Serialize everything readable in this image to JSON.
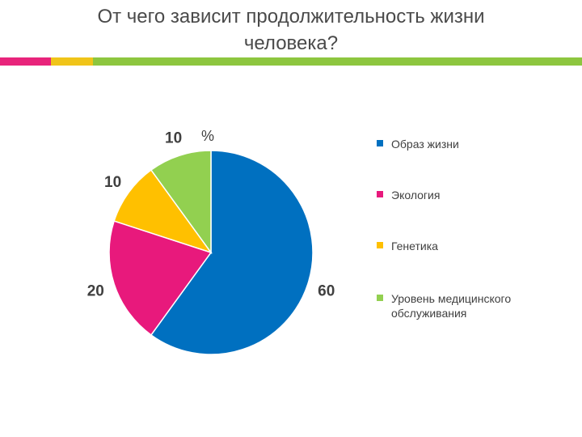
{
  "header": {
    "title_line1": "От чего зависит продолжительность жизни",
    "title_line2": "человека?"
  },
  "accent_colors": [
    "#e8247b",
    "#f0c419",
    "#8dc63f"
  ],
  "chart_data": {
    "type": "pie",
    "unit_label": "%",
    "categories": [
      "Образ жизни",
      "Экология",
      "Генетика",
      "Уровень медицинского обслуживания"
    ],
    "legend_lines": [
      [
        "Образ жизни"
      ],
      [
        "Экология"
      ],
      [
        "Генетика"
      ],
      [
        "Уровень медицинского",
        "обслуживания"
      ]
    ],
    "values": [
      60,
      20,
      10,
      10
    ],
    "colors": [
      "#0070c0",
      "#e8197c",
      "#ffc000",
      "#92d050"
    ],
    "legend_position": "right",
    "start_angle": "12 o'clock, clockwise"
  }
}
